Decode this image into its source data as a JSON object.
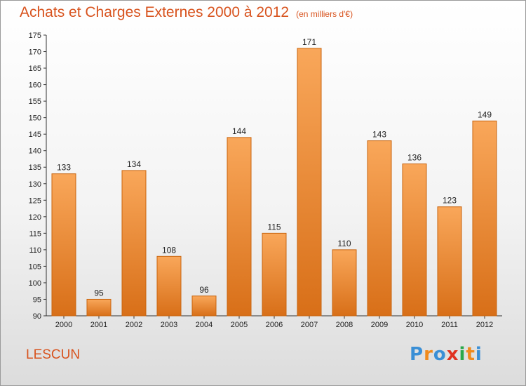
{
  "title": {
    "main": "Achats et Charges Externes 2000 à 2012",
    "unit": "(en milliers d'€)"
  },
  "commune": "LESCUN",
  "logo": {
    "text": "Proxiti",
    "letters": [
      "P",
      "r",
      "o",
      "x",
      "i",
      "t",
      "i"
    ],
    "colors": [
      "#3a8fd6",
      "#f08a1c",
      "#3a8fd6",
      "#e03020",
      "#2aa84a",
      "#f08a1c",
      "#3a8fd6"
    ]
  },
  "colors": {
    "accent": "#d8531e",
    "bar_top": "#f9a75a",
    "bar_bottom": "#d86f18",
    "bar_stroke": "#c9650f"
  },
  "chart_data": {
    "type": "bar",
    "categories": [
      "2000",
      "2001",
      "2002",
      "2003",
      "2004",
      "2005",
      "2006",
      "2007",
      "2008",
      "2009",
      "2010",
      "2011",
      "2012"
    ],
    "values": [
      133,
      95,
      134,
      108,
      96,
      144,
      115,
      171,
      110,
      143,
      136,
      123,
      149
    ],
    "value_labels": [
      "133",
      "95",
      "134",
      "108",
      "96",
      "144",
      "115",
      "171",
      "110",
      "143",
      "136",
      "123",
      "149"
    ],
    "title": "Achats et Charges Externes 2000 à 2012",
    "unit": "(en milliers d'€)",
    "xlabel": "",
    "ylabel": "",
    "ylim": [
      90,
      175
    ],
    "yticks": [
      "90",
      "95",
      "100",
      "105",
      "110",
      "115",
      "120",
      "125",
      "130",
      "135",
      "140",
      "145",
      "150",
      "155",
      "160",
      "165",
      "170",
      "175"
    ],
    "grid": false,
    "legend": "none"
  }
}
